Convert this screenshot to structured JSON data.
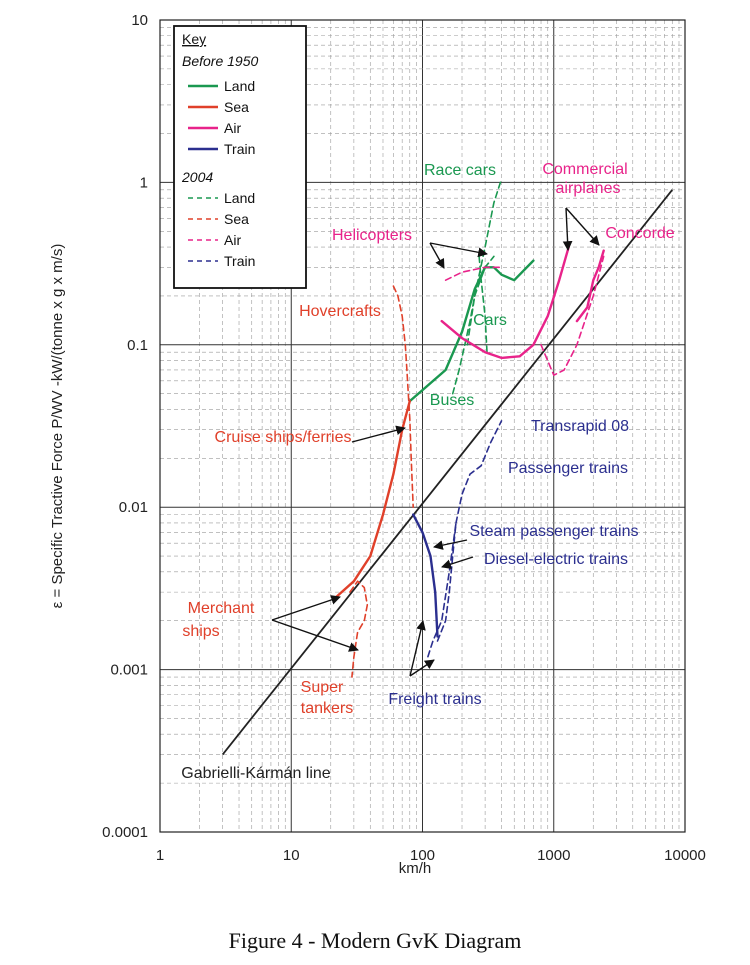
{
  "caption": "Figure 4 - Modern GvK Diagram",
  "chart_data": {
    "type": "line",
    "xscale": "log",
    "yscale": "log",
    "xlim": [
      1,
      10000
    ],
    "ylim": [
      0.0001,
      10
    ],
    "xlabel": "km/h",
    "ylabel": "ε = Specific Tractive Force P/WV -kW/(tonne x g x m/s)",
    "x_ticks": [
      "1",
      "10",
      "100",
      "1000",
      "10000"
    ],
    "y_ticks": [
      "10",
      "1",
      "0.1",
      "0.01",
      "0.001",
      "0.0001"
    ],
    "colors": {
      "land": "#1a9850",
      "sea": "#e0402a",
      "air": "#e8238a",
      "train": "#2b2f8f",
      "line": "#222222"
    },
    "legend": {
      "title": "Key",
      "group1": "Before   1950",
      "group2": "2004",
      "entries": [
        "Land",
        "Sea",
        "Air",
        "Train"
      ]
    },
    "reference_line": {
      "name": "Gabrielli-Kármán line",
      "x": [
        3,
        8000
      ],
      "y": [
        0.0003,
        0.9
      ]
    },
    "series": [
      {
        "category": "land",
        "era": "before 1950",
        "x": [
          80,
          150,
          200,
          250,
          300,
          350,
          400,
          500,
          700
        ],
        "y": [
          0.045,
          0.07,
          0.12,
          0.22,
          0.3,
          0.3,
          0.27,
          0.25,
          0.33
        ]
      },
      {
        "category": "land",
        "era": "2004",
        "x": [
          220,
          250,
          300,
          350,
          400
        ],
        "y": [
          0.1,
          0.2,
          0.4,
          0.75,
          1.05
        ]
      },
      {
        "category": "land",
        "era": "2004",
        "x": [
          170,
          190,
          210,
          230,
          250,
          300,
          350
        ],
        "y": [
          0.05,
          0.07,
          0.1,
          0.14,
          0.2,
          0.3,
          0.35
        ]
      },
      {
        "category": "land",
        "era": "2004",
        "x": [
          270,
          280,
          300,
          310
        ],
        "y": [
          0.35,
          0.25,
          0.15,
          0.09
        ]
      },
      {
        "category": "sea",
        "era": "before 1950",
        "x": [
          22,
          30,
          40,
          50,
          60,
          70,
          80
        ],
        "y": [
          0.0028,
          0.0035,
          0.005,
          0.009,
          0.016,
          0.03,
          0.045
        ]
      },
      {
        "category": "sea",
        "era": "2004",
        "x": [
          60,
          65,
          70,
          74,
          76,
          78,
          80,
          82,
          85
        ],
        "y": [
          0.23,
          0.2,
          0.15,
          0.1,
          0.07,
          0.05,
          0.035,
          0.02,
          0.01
        ]
      },
      {
        "category": "sea",
        "era": "2004",
        "x": [
          28,
          32,
          36,
          38,
          36,
          32,
          30,
          29
        ],
        "y": [
          0.003,
          0.0035,
          0.0032,
          0.0025,
          0.002,
          0.0017,
          0.0012,
          0.0009
        ]
      },
      {
        "category": "air",
        "era": "before 1950",
        "x": [
          140,
          200,
          300,
          400,
          550,
          700,
          900,
          1100,
          1300
        ],
        "y": [
          0.14,
          0.11,
          0.09,
          0.083,
          0.085,
          0.1,
          0.15,
          0.25,
          0.4
        ]
      },
      {
        "category": "air",
        "era": "before 1950",
        "x": [
          1500,
          1800,
          2000,
          2200,
          2400
        ],
        "y": [
          0.14,
          0.17,
          0.25,
          0.3,
          0.38
        ]
      },
      {
        "category": "air",
        "era": "2004",
        "x": [
          150,
          200,
          300,
          400
        ],
        "y": [
          0.25,
          0.28,
          0.3,
          0.3
        ]
      },
      {
        "category": "air",
        "era": "2004",
        "x": [
          800,
          1000,
          1200,
          1500,
          2000,
          2400
        ],
        "y": [
          0.1,
          0.065,
          0.07,
          0.1,
          0.2,
          0.35
        ]
      },
      {
        "category": "train",
        "era": "before 1950",
        "x": [
          85,
          100,
          115,
          125,
          130
        ],
        "y": [
          0.009,
          0.007,
          0.005,
          0.003,
          0.0016
        ]
      },
      {
        "category": "train",
        "era": "2004",
        "x": [
          130,
          150,
          160,
          170,
          180,
          200,
          230,
          280,
          330,
          400
        ],
        "y": [
          0.0015,
          0.002,
          0.003,
          0.005,
          0.008,
          0.012,
          0.016,
          0.018,
          0.025,
          0.034
        ]
      },
      {
        "category": "train",
        "era": "2004",
        "x": [
          110,
          120,
          140,
          160,
          180
        ],
        "y": [
          0.0012,
          0.0015,
          0.002,
          0.004,
          0.008
        ]
      }
    ],
    "annotations": [
      {
        "text": "Race cars",
        "category": "land"
      },
      {
        "text": "Cars",
        "category": "land"
      },
      {
        "text": "Buses",
        "category": "land"
      },
      {
        "text": "Hovercrafts",
        "category": "sea"
      },
      {
        "text": "Cruise ships/ferries",
        "category": "sea"
      },
      {
        "text": "Merchant",
        "category": "sea"
      },
      {
        "text": "ships",
        "category": "sea"
      },
      {
        "text": "Super",
        "category": "sea"
      },
      {
        "text": "tankers",
        "category": "sea"
      },
      {
        "text": "Commercial",
        "category": "air"
      },
      {
        "text": "airplanes",
        "category": "air"
      },
      {
        "text": "Concorde",
        "category": "air"
      },
      {
        "text": "Helicopters",
        "category": "air"
      },
      {
        "text": "Transrapid 08",
        "category": "train"
      },
      {
        "text": "Passenger trains",
        "category": "train"
      },
      {
        "text": "Steam passenger trains",
        "category": "train"
      },
      {
        "text": "Diesel-electric trains",
        "category": "train"
      },
      {
        "text": "Freight trains",
        "category": "train"
      },
      {
        "text": "Gabrielli-Kármán line",
        "category": "line"
      }
    ]
  }
}
